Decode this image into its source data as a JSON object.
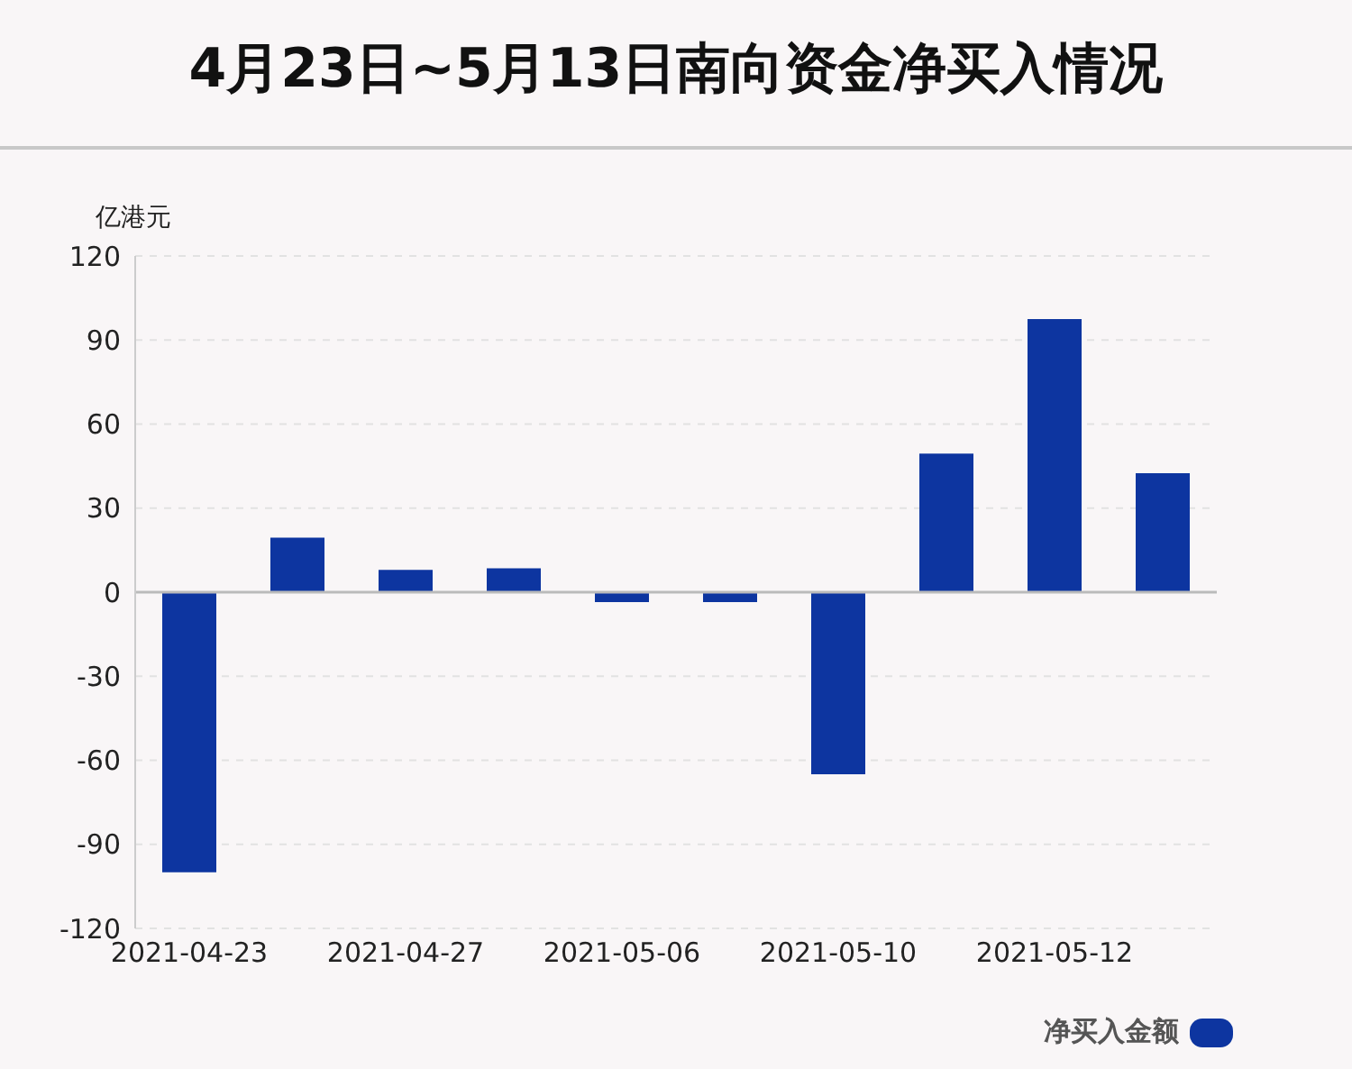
{
  "chart_data": {
    "type": "bar",
    "title": "4月23日~5月13日南向资金净买入情况",
    "ylabel": "亿港元",
    "categories": [
      "2021-04-23",
      null,
      "2021-04-27",
      null,
      "2021-05-06",
      null,
      "2021-05-10",
      null,
      "2021-05-12",
      null
    ],
    "series": [
      {
        "name": "净买入金额",
        "color": "#0d35a0",
        "values": [
          -100,
          19.5,
          8,
          8.5,
          -3.5,
          -3.5,
          -65,
          49.5,
          97.5,
          42.5
        ]
      }
    ],
    "ylim": [
      -120,
      120
    ],
    "yticks": [
      -120,
      -90,
      -60,
      -30,
      0,
      30,
      60,
      90,
      120
    ],
    "grid": "y",
    "legend": "bottom right"
  }
}
